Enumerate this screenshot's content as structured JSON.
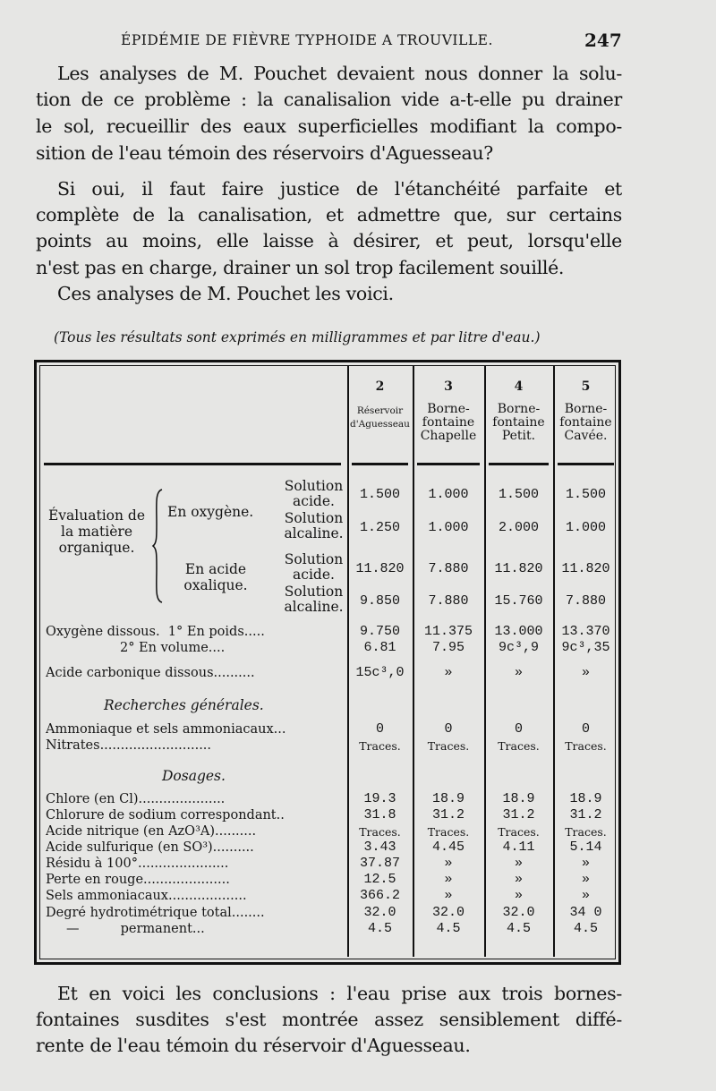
{
  "header": {
    "running_title": "ÉPIDÉMIE DE FIÈVRE TYPHOIDE A TROUVILLE.",
    "page_number": "247"
  },
  "paragraphs_top": [
    "Les analyses de M. Pouchet devaient nous donner la solu-",
    "tion de ce problème : la canalisalion vide a-t-elle pu drainer",
    "le sol, recueillir des eaux superficielles modifiant la compo-",
    "sition de l'eau témoin des réservoirs d'Aguesseau?",
    "Si oui, il faut faire justice de l'étanchéité parfaite et",
    "complète de la canalisation, et admettre que, sur certains",
    "points au moins, elle laisse à désirer, et peut, lorsqu'elle",
    "n'est pas en charge, drainer un sol trop facilement souillé.",
    "Ces analyses de M. Pouchet les voici."
  ],
  "note": "(Tous les résultats sont exprimés en milligrammes et par litre d'eau.)",
  "table": {
    "columns": [
      {
        "number": "2",
        "name": "Réservoir d'Aguesseau"
      },
      {
        "number": "3",
        "name": "Borne-fontaine Chapelle"
      },
      {
        "number": "4",
        "name": "Borne-fontaine Petit."
      },
      {
        "number": "5",
        "name": "Borne-fontaine Cavée."
      }
    ],
    "organic": {
      "group": "Évaluation de la matière organique.",
      "sub1": "En oxygène.",
      "sub2": "En acide oxalique.",
      "acid": "Solution acide.",
      "alk": "Solution alcaline."
    },
    "rows": [
      {
        "label": "",
        "values": [
          "1.500",
          "1.000",
          "1.500",
          "1.500"
        ]
      },
      {
        "label": "",
        "values": [
          "1.250",
          "1.000",
          "2.000",
          "1.000"
        ]
      },
      {
        "label": "",
        "values": [
          "11.820",
          "7.880",
          "11.820",
          "11.820"
        ]
      },
      {
        "label": "",
        "values": [
          "9.850",
          "7.880",
          "15.760",
          "7.880"
        ]
      },
      {
        "label": "Oxygène dissous.  1° En poids.....",
        "values": [
          "9.750",
          "11.375",
          "13.000",
          "13.370"
        ]
      },
      {
        "label": "                  2° En volume....",
        "values": [
          "6.81",
          "7.95",
          "9c³,9",
          "9c³,35"
        ]
      },
      {
        "label": "Acide carbonique dissous..........",
        "values": [
          "15c³,0",
          "»",
          "»",
          "»"
        ]
      },
      {
        "section": "Recherches générales."
      },
      {
        "label": "Ammoniaque et sels ammoniacaux...",
        "values": [
          "0",
          "0",
          "0",
          "0"
        ]
      },
      {
        "label": "Nitrates...........................",
        "values": [
          "Traces.",
          "Traces.",
          "Traces.",
          "Traces."
        ]
      },
      {
        "section": "Dosages."
      },
      {
        "label": "Chlore (en Cl).....................",
        "values": [
          "19.3",
          "18.9",
          "18.9",
          "18.9"
        ]
      },
      {
        "label": "Chlorure de sodium correspondant..",
        "values": [
          "31.8",
          "31.2",
          "31.2",
          "31.2"
        ]
      },
      {
        "label": "Acide nitrique (en AzO³A)..........",
        "values": [
          "Traces.",
          "Traces.",
          "Traces.",
          "Traces."
        ]
      },
      {
        "label": "Acide sulfurique (en SO³)..........",
        "values": [
          "3.43",
          "4.45",
          "4.11",
          "5.14"
        ]
      },
      {
        "label": "Résidu à 100°......................",
        "values": [
          "37.87",
          "»",
          "»",
          "»"
        ]
      },
      {
        "label": "Perte en rouge.....................",
        "values": [
          "12.5",
          "»",
          "»",
          "»"
        ]
      },
      {
        "label": "Sels ammoniacaux...................",
        "values": [
          "366.2",
          "»",
          "»",
          "»"
        ]
      },
      {
        "label": "Degré hydrotimétrique total........",
        "values": [
          "32.0",
          "32.0",
          "32.0",
          "34 0"
        ]
      },
      {
        "label": "     —          permanent...",
        "values": [
          "4.5",
          "4.5",
          "4.5",
          "4.5"
        ]
      }
    ]
  },
  "paragraphs_bottom": [
    "Et en voici les conclusions : l'eau prise aux trois bornes-",
    "fontaines susdites s'est montrée assez sensiblement diffé-",
    "rente de l'eau témoin du réservoir d'Aguesseau."
  ]
}
